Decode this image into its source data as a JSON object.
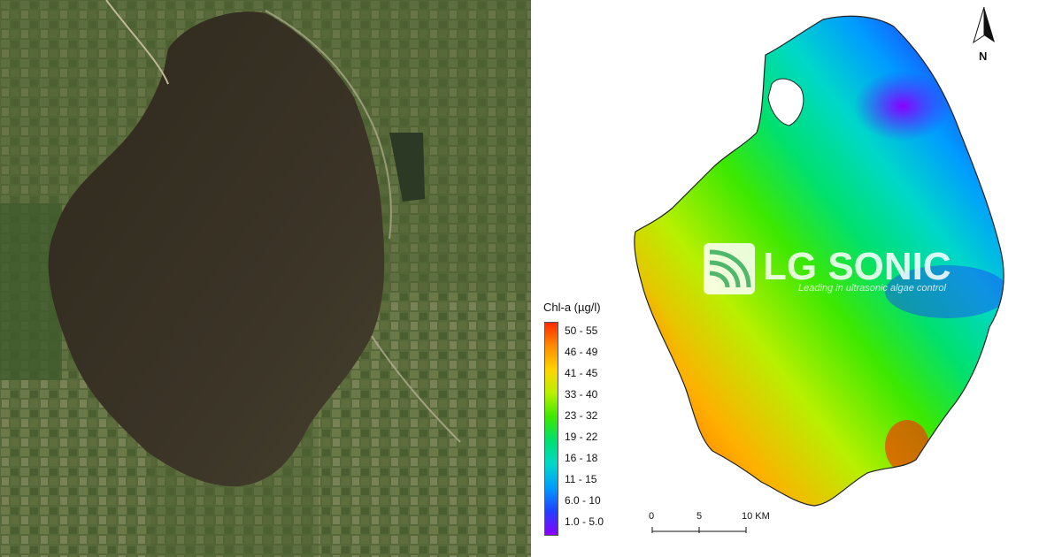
{
  "legend": {
    "title": "Chl-a (µg/l)",
    "classes": [
      "50 - 55",
      "46 - 49",
      "41 - 45",
      "33 - 40",
      "23 - 32",
      "19 - 22",
      "16 - 18",
      "11 - 15",
      "6.0 - 10",
      "1.0 - 5.0"
    ],
    "colors": [
      "#ff2a00",
      "#ff8c00",
      "#ffd400",
      "#b8f000",
      "#3ce800",
      "#00e070",
      "#00d8c8",
      "#009cff",
      "#2040ff",
      "#8a00ff"
    ]
  },
  "scale_bar": {
    "labels": [
      "0",
      "5",
      "10 KM"
    ]
  },
  "north_arrow": {
    "label": "N"
  },
  "watermark": {
    "brand": "LG SONIC",
    "tagline": "Leading in ultrasonic algae control"
  }
}
